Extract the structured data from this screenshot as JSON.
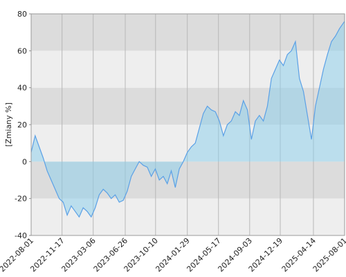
{
  "chart_data": {
    "type": "area",
    "y_label": "[Zmiany %]",
    "ylim": [
      -40,
      80
    ],
    "yticks": [
      -40,
      -20,
      0,
      20,
      40,
      60,
      80
    ],
    "xlim": [
      "2022-08-01",
      "2025-08-01"
    ],
    "xticks": [
      "2022-08-01",
      "2022-11-17",
      "2023-03-06",
      "2023-06-26",
      "2023-10-10",
      "2024-01-29",
      "2024-05-17",
      "2024-09-03",
      "2024-12-19",
      "2025-04-14",
      "2025-08-01"
    ],
    "grid": true,
    "color": "#5aa0e6",
    "x": [
      "2022-08-01",
      "2022-08-15",
      "2022-08-29",
      "2022-09-12",
      "2022-09-26",
      "2022-10-10",
      "2022-10-24",
      "2022-11-07",
      "2022-11-21",
      "2022-12-05",
      "2022-12-19",
      "2023-01-02",
      "2023-01-16",
      "2023-01-30",
      "2023-02-13",
      "2023-02-27",
      "2023-03-13",
      "2023-03-27",
      "2023-04-10",
      "2023-04-24",
      "2023-05-08",
      "2023-05-22",
      "2023-06-05",
      "2023-06-19",
      "2023-07-03",
      "2023-07-17",
      "2023-07-31",
      "2023-08-14",
      "2023-08-28",
      "2023-09-11",
      "2023-09-25",
      "2023-10-09",
      "2023-10-23",
      "2023-11-06",
      "2023-11-20",
      "2023-12-04",
      "2023-12-18",
      "2024-01-01",
      "2024-01-15",
      "2024-01-29",
      "2024-02-12",
      "2024-02-26",
      "2024-03-11",
      "2024-03-25",
      "2024-04-08",
      "2024-04-22",
      "2024-05-06",
      "2024-05-20",
      "2024-06-03",
      "2024-06-17",
      "2024-07-01",
      "2024-07-15",
      "2024-07-29",
      "2024-08-12",
      "2024-08-26",
      "2024-09-09",
      "2024-09-23",
      "2024-10-07",
      "2024-10-21",
      "2024-11-04",
      "2024-11-18",
      "2024-12-02",
      "2024-12-16",
      "2024-12-30",
      "2025-01-13",
      "2025-01-27",
      "2025-02-10",
      "2025-02-24",
      "2025-03-10",
      "2025-03-24",
      "2025-04-07",
      "2025-04-21",
      "2025-05-05",
      "2025-05-19",
      "2025-06-02",
      "2025-06-16",
      "2025-06-30",
      "2025-07-14",
      "2025-08-01"
    ],
    "values": [
      5,
      14,
      8,
      2,
      -5,
      -10,
      -15,
      -20,
      -22,
      -29,
      -24,
      -27,
      -30,
      -25,
      -27,
      -30,
      -25,
      -18,
      -15,
      -17,
      -20,
      -18,
      -22,
      -21,
      -16,
      -8,
      -4,
      0,
      -2,
      -3,
      -8,
      -4,
      -10,
      -8,
      -12,
      -5,
      -14,
      -4,
      0,
      5,
      8,
      10,
      18,
      26,
      30,
      28,
      27,
      22,
      14,
      20,
      22,
      27,
      25,
      33,
      28,
      12,
      22,
      25,
      22,
      30,
      45,
      50,
      55,
      52,
      58,
      60,
      65,
      45,
      38,
      25,
      12,
      30,
      40,
      50,
      58,
      65,
      68,
      72,
      76
    ]
  }
}
